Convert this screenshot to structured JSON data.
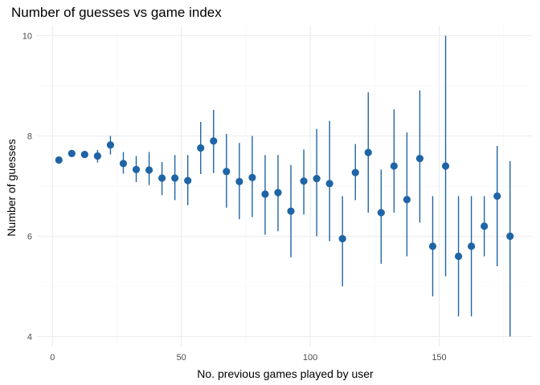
{
  "chart_data": {
    "type": "scatter",
    "title": "Number of guesses vs game index",
    "xlabel": "No. previous games played by user",
    "ylabel": "Number of guesses",
    "xlim": [
      -6,
      186
    ],
    "ylim": [
      3.8,
      10.2
    ],
    "x_ticks": [
      0,
      50,
      100,
      150
    ],
    "y_ticks": [
      4,
      6,
      8,
      10
    ],
    "x_tick_labels": [
      "0",
      "50",
      "100",
      "150"
    ],
    "y_tick_labels": [
      "4",
      "6",
      "8",
      "10"
    ],
    "grid": true,
    "legend": "none",
    "color": "#1f65a6",
    "points": [
      {
        "x": 2.5,
        "y": 7.52,
        "lo": 7.52,
        "hi": 7.52
      },
      {
        "x": 7.5,
        "y": 7.65,
        "lo": 7.62,
        "hi": 7.68
      },
      {
        "x": 12.5,
        "y": 7.63,
        "lo": 7.57,
        "hi": 7.7
      },
      {
        "x": 17.5,
        "y": 7.6,
        "lo": 7.47,
        "hi": 7.72
      },
      {
        "x": 22.5,
        "y": 7.82,
        "lo": 7.63,
        "hi": 8.0
      },
      {
        "x": 27.5,
        "y": 7.45,
        "lo": 7.25,
        "hi": 7.68
      },
      {
        "x": 32.5,
        "y": 7.33,
        "lo": 7.08,
        "hi": 7.6
      },
      {
        "x": 37.5,
        "y": 7.32,
        "lo": 7.02,
        "hi": 7.68
      },
      {
        "x": 42.5,
        "y": 7.16,
        "lo": 6.82,
        "hi": 7.48
      },
      {
        "x": 47.5,
        "y": 7.16,
        "lo": 6.72,
        "hi": 7.62
      },
      {
        "x": 52.5,
        "y": 7.11,
        "lo": 6.62,
        "hi": 7.62
      },
      {
        "x": 57.5,
        "y": 7.76,
        "lo": 7.24,
        "hi": 8.28
      },
      {
        "x": 62.5,
        "y": 7.9,
        "lo": 7.26,
        "hi": 8.52
      },
      {
        "x": 67.5,
        "y": 7.29,
        "lo": 6.57,
        "hi": 8.04
      },
      {
        "x": 72.5,
        "y": 7.09,
        "lo": 6.34,
        "hi": 7.86
      },
      {
        "x": 77.5,
        "y": 7.17,
        "lo": 6.38,
        "hi": 8.0
      },
      {
        "x": 82.5,
        "y": 6.84,
        "lo": 6.03,
        "hi": 7.62
      },
      {
        "x": 87.5,
        "y": 6.87,
        "lo": 6.1,
        "hi": 7.62
      },
      {
        "x": 92.5,
        "y": 6.5,
        "lo": 5.58,
        "hi": 7.42
      },
      {
        "x": 97.5,
        "y": 7.1,
        "lo": 6.43,
        "hi": 7.73
      },
      {
        "x": 102.5,
        "y": 7.15,
        "lo": 6.0,
        "hi": 8.14
      },
      {
        "x": 107.5,
        "y": 7.05,
        "lo": 5.9,
        "hi": 8.3
      },
      {
        "x": 112.5,
        "y": 5.95,
        "lo": 5.0,
        "hi": 6.8
      },
      {
        "x": 117.5,
        "y": 7.27,
        "lo": 6.72,
        "hi": 7.84
      },
      {
        "x": 122.5,
        "y": 7.67,
        "lo": 6.47,
        "hi": 8.87
      },
      {
        "x": 127.5,
        "y": 6.47,
        "lo": 5.45,
        "hi": 7.33
      },
      {
        "x": 132.5,
        "y": 7.4,
        "lo": 6.47,
        "hi": 8.53
      },
      {
        "x": 137.5,
        "y": 6.73,
        "lo": 5.6,
        "hi": 8.07
      },
      {
        "x": 142.5,
        "y": 7.55,
        "lo": 6.27,
        "hi": 8.91
      },
      {
        "x": 147.5,
        "y": 5.8,
        "lo": 4.8,
        "hi": 6.8
      },
      {
        "x": 152.5,
        "y": 7.4,
        "lo": 5.2,
        "hi": 10.0
      },
      {
        "x": 157.5,
        "y": 5.6,
        "lo": 4.4,
        "hi": 6.8
      },
      {
        "x": 162.5,
        "y": 5.8,
        "lo": 4.4,
        "hi": 6.8
      },
      {
        "x": 167.5,
        "y": 6.2,
        "lo": 5.6,
        "hi": 6.8
      },
      {
        "x": 172.5,
        "y": 6.8,
        "lo": 5.4,
        "hi": 7.8
      },
      {
        "x": 177.5,
        "y": 6.0,
        "lo": 4.0,
        "hi": 7.5
      }
    ]
  }
}
